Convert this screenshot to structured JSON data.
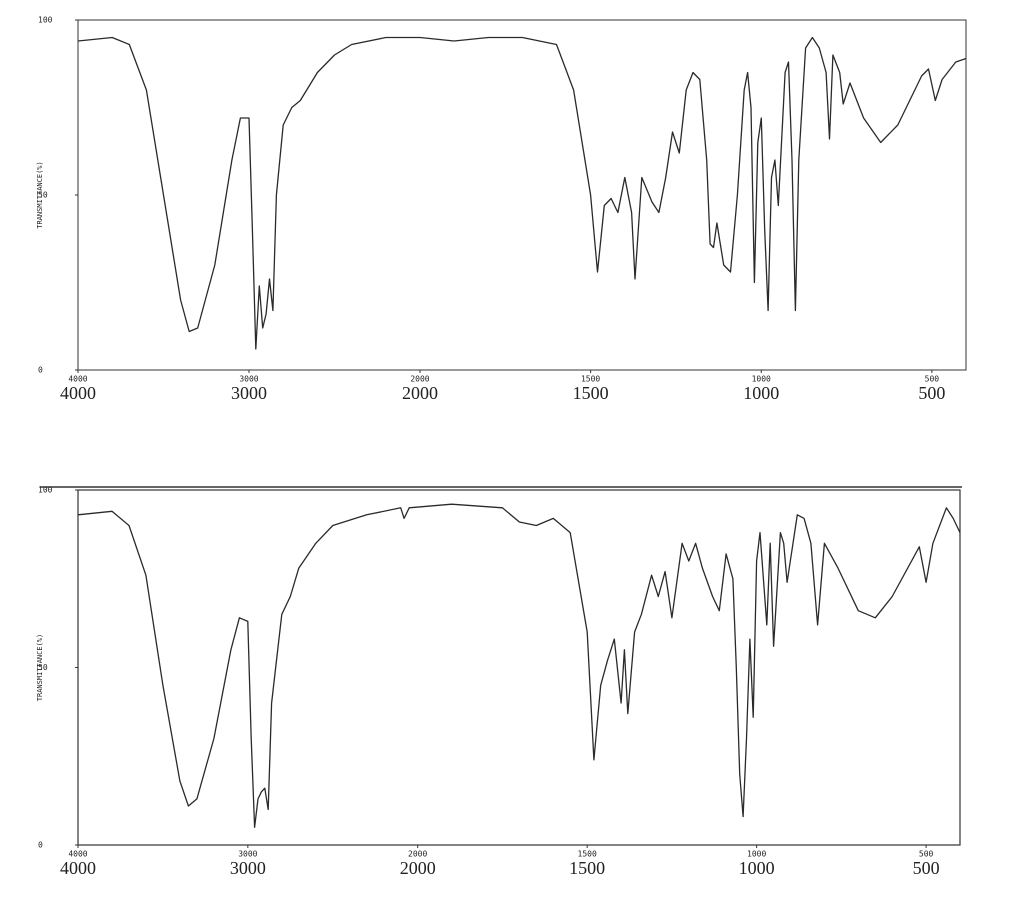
{
  "chart_data": [
    {
      "type": "line",
      "y_label": "TRANSMITTANCE(%)",
      "color": "#2a2a2a",
      "xlim": [
        4000,
        400
      ],
      "xbreak": 2000,
      "xticks": [
        4000,
        3000,
        2000,
        1500,
        1000,
        500
      ],
      "ylim": [
        0,
        100
      ],
      "yticks": [
        0,
        50,
        100
      ],
      "x": [
        4000,
        3800,
        3700,
        3600,
        3500,
        3400,
        3350,
        3300,
        3200,
        3100,
        3050,
        3000,
        2980,
        2960,
        2940,
        2920,
        2900,
        2880,
        2860,
        2840,
        2800,
        2750,
        2700,
        2600,
        2500,
        2400,
        2200,
        2000,
        1900,
        1800,
        1700,
        1600,
        1550,
        1500,
        1480,
        1460,
        1440,
        1420,
        1400,
        1380,
        1370,
        1350,
        1320,
        1300,
        1280,
        1260,
        1240,
        1220,
        1200,
        1180,
        1160,
        1150,
        1140,
        1130,
        1110,
        1090,
        1070,
        1050,
        1040,
        1030,
        1020,
        1010,
        1000,
        990,
        980,
        970,
        960,
        950,
        930,
        920,
        910,
        900,
        890,
        870,
        850,
        830,
        810,
        800,
        790,
        770,
        760,
        740,
        700,
        650,
        600,
        530,
        510,
        490,
        470,
        430,
        400
      ],
      "values": [
        94,
        95,
        93,
        80,
        50,
        20,
        11,
        12,
        30,
        60,
        72,
        72,
        40,
        6,
        24,
        12,
        16,
        26,
        17,
        50,
        70,
        75,
        77,
        85,
        90,
        93,
        95,
        95,
        94,
        95,
        95,
        93,
        80,
        50,
        28,
        47,
        49,
        45,
        55,
        45,
        26,
        55,
        48,
        45,
        55,
        68,
        62,
        80,
        85,
        83,
        60,
        36,
        35,
        42,
        30,
        28,
        50,
        80,
        85,
        75,
        25,
        65,
        72,
        40,
        17,
        55,
        60,
        47,
        85,
        88,
        60,
        17,
        60,
        92,
        95,
        92,
        85,
        66,
        90,
        85,
        76,
        82,
        72,
        65,
        70,
        84,
        86,
        77,
        83,
        88,
        89
      ]
    },
    {
      "type": "line",
      "y_label": "TRANSMITTANCE(%)",
      "color": "#2a2a2a",
      "xlim": [
        4000,
        400
      ],
      "xbreak": 2000,
      "xticks": [
        4000,
        3000,
        2000,
        1500,
        1000,
        500
      ],
      "ylim": [
        0,
        100
      ],
      "yticks": [
        0,
        50,
        100
      ],
      "x": [
        4000,
        3800,
        3700,
        3600,
        3500,
        3400,
        3350,
        3300,
        3200,
        3100,
        3050,
        3000,
        2980,
        2960,
        2940,
        2920,
        2900,
        2880,
        2860,
        2800,
        2750,
        2700,
        2600,
        2500,
        2300,
        2100,
        2080,
        2050,
        1900,
        1750,
        1700,
        1650,
        1600,
        1550,
        1500,
        1480,
        1460,
        1440,
        1420,
        1400,
        1390,
        1380,
        1360,
        1340,
        1310,
        1290,
        1270,
        1250,
        1220,
        1200,
        1180,
        1160,
        1130,
        1110,
        1090,
        1070,
        1060,
        1050,
        1040,
        1030,
        1020,
        1010,
        1000,
        990,
        970,
        960,
        950,
        930,
        920,
        910,
        880,
        860,
        840,
        820,
        800,
        760,
        700,
        650,
        600,
        520,
        500,
        480,
        440,
        420,
        400
      ],
      "values": [
        93,
        94,
        90,
        76,
        45,
        18,
        11,
        13,
        30,
        55,
        64,
        63,
        30,
        5,
        13,
        15,
        16,
        10,
        40,
        65,
        70,
        78,
        85,
        90,
        93,
        95,
        92,
        95,
        96,
        95,
        91,
        90,
        92,
        88,
        60,
        24,
        45,
        52,
        58,
        40,
        55,
        37,
        60,
        65,
        76,
        70,
        77,
        64,
        85,
        80,
        85,
        78,
        70,
        66,
        82,
        75,
        50,
        20,
        8,
        30,
        58,
        36,
        80,
        88,
        62,
        85,
        56,
        88,
        85,
        74,
        93,
        92,
        85,
        62,
        85,
        78,
        66,
        64,
        70,
        84,
        74,
        85,
        95,
        92,
        88
      ]
    }
  ]
}
